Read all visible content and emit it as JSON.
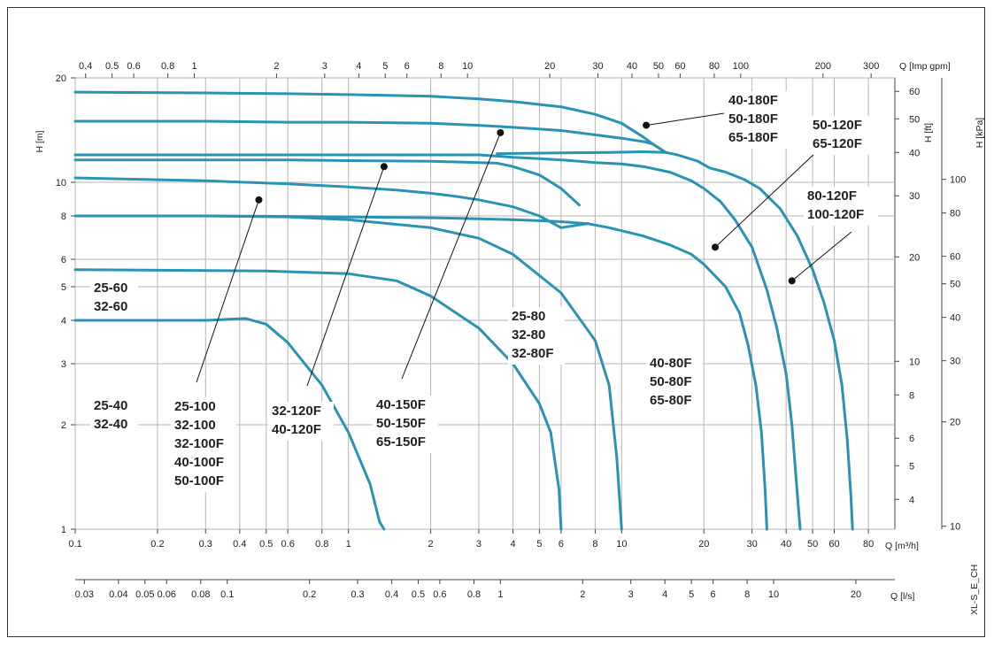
{
  "chart_data": {
    "type": "line",
    "title": "",
    "xlabel": "Q [m³/h]",
    "ylabel": "H [m]",
    "x_scale": "log",
    "y_scale": "log",
    "xlim": [
      0.1,
      100
    ],
    "ylim": [
      1,
      20
    ],
    "grid": true,
    "x_ticks": [
      "0.1",
      "0.2",
      "0.3",
      "0.4",
      "0.5",
      "0.6",
      "0.8",
      "1",
      "2",
      "3",
      "4",
      "5",
      "6",
      "8",
      "10",
      "20",
      "30",
      "40",
      "50",
      "60",
      "80"
    ],
    "y_ticks": [
      "1",
      "2",
      "3",
      "4",
      "5",
      "6",
      "8",
      "10",
      "20"
    ],
    "secondary_axes": {
      "top": {
        "label": "Q [Imp gpm]",
        "ticks": [
          "0.4",
          "0.5",
          "0.6",
          "0.8",
          "1",
          "2",
          "3",
          "4",
          "5",
          "6",
          "8",
          "10",
          "20",
          "30",
          "40",
          "50",
          "60",
          "80",
          "100",
          "200",
          "300"
        ]
      },
      "bottom2": {
        "label": "Q [l/s]",
        "ticks": [
          "0.03",
          "0.04",
          "0.05",
          "0.06",
          "0.08",
          "0.1",
          "0.2",
          "0.3",
          "0.4",
          "0.5",
          "0.6",
          "0.8",
          "1",
          "2",
          "3",
          "4",
          "5",
          "6",
          "8",
          "10",
          "20"
        ]
      },
      "right1": {
        "label": "H [ft]",
        "ticks": [
          "4",
          "5",
          "6",
          "8",
          "10",
          "20",
          "30",
          "40",
          "50",
          "60"
        ]
      },
      "right2": {
        "label": "H [kPa]",
        "ticks": [
          "10",
          "20",
          "30",
          "40",
          "50",
          "60",
          "80",
          "100"
        ]
      }
    },
    "side_label": "XL-S_E_CH",
    "series": [
      {
        "x": [
          0.1,
          0.3,
          0.42,
          0.5,
          0.6,
          0.8,
          1.0,
          1.2,
          1.3,
          1.35
        ],
        "y": [
          4.0,
          4.0,
          4.05,
          3.9,
          3.45,
          2.6,
          1.9,
          1.35,
          1.05,
          1.0
        ]
      },
      {
        "x": [
          0.1,
          0.5,
          1.0,
          1.5,
          2.0,
          3.0,
          4.0,
          5.0,
          5.5,
          5.9,
          6.0
        ],
        "y": [
          5.6,
          5.55,
          5.45,
          5.2,
          4.7,
          3.8,
          3.0,
          2.3,
          1.9,
          1.3,
          1.0
        ]
      },
      {
        "x": [
          0.1,
          0.3,
          0.6,
          1.0,
          2.0,
          3.0,
          4.0,
          6.0,
          8.0,
          9.0,
          9.6,
          10.0
        ],
        "y": [
          8.0,
          8.0,
          7.95,
          7.8,
          7.4,
          6.9,
          6.2,
          4.8,
          3.5,
          2.6,
          1.6,
          1.0
        ]
      },
      {
        "x": [
          0.1,
          0.3,
          0.6,
          1.0,
          1.5,
          2.0,
          2.5,
          3.0,
          4.0,
          5.0,
          6.0,
          7.5
        ],
        "y": [
          10.3,
          10.1,
          9.9,
          9.7,
          9.5,
          9.3,
          9.1,
          8.9,
          8.5,
          8.0,
          7.4,
          7.6
        ]
      },
      {
        "x": [
          0.1,
          0.3,
          0.5,
          1.0,
          2.0,
          3.0,
          4.0,
          5.0,
          6.0,
          7.5
        ],
        "y": [
          8.0,
          8.0,
          7.98,
          7.95,
          7.9,
          7.85,
          7.8,
          7.75,
          7.7,
          7.6
        ]
      },
      {
        "x": [
          7.5,
          9.0,
          12.0,
          15.0,
          18.0,
          20.0,
          24.0,
          27.0,
          29.0,
          31.0,
          32.5,
          33.5,
          34.0
        ],
        "y": [
          7.6,
          7.4,
          7.0,
          6.6,
          6.2,
          5.8,
          5.0,
          4.2,
          3.4,
          2.6,
          1.9,
          1.3,
          1.0
        ]
      },
      {
        "x": [
          0.1,
          0.3,
          0.6,
          1.0,
          2.0,
          3.0,
          3.5,
          4.0,
          5.0,
          6.0,
          7.0
        ],
        "y": [
          11.6,
          11.6,
          11.6,
          11.55,
          11.5,
          11.4,
          11.35,
          11.1,
          10.5,
          9.6,
          8.6
        ]
      },
      {
        "x": [
          0.1,
          0.3,
          0.5,
          1.0,
          2.0,
          3.0,
          3.5,
          4.0,
          5.0,
          6.0,
          7.0,
          8.0,
          10.0,
          12.0,
          15.0,
          18.0,
          20.0,
          23.0,
          26.0,
          30.0,
          34.0,
          37.0,
          40.0,
          42.0,
          43.5,
          45.0
        ],
        "y": [
          12.0,
          12.0,
          12.0,
          12.0,
          12.0,
          12.0,
          11.9,
          11.8,
          11.7,
          11.6,
          11.5,
          11.4,
          11.3,
          11.1,
          10.7,
          10.1,
          9.6,
          8.8,
          7.8,
          6.5,
          4.9,
          3.8,
          2.8,
          2.0,
          1.4,
          1.0
        ]
      },
      {
        "x": [
          0.1,
          0.3,
          0.6,
          1.0,
          2.0,
          3.0,
          4.0,
          6.0,
          8.0,
          10.0,
          12.0,
          13.0,
          14.5
        ],
        "y": [
          15.0,
          15.0,
          14.9,
          14.9,
          14.8,
          14.6,
          14.4,
          14.1,
          13.7,
          13.4,
          13.1,
          12.9,
          12.2
        ]
      },
      {
        "x": [
          0.1,
          0.3,
          0.6,
          1.0,
          2.0,
          3.0,
          4.0,
          6.0,
          8.0,
          10.0,
          12.0,
          13.0,
          14.5
        ],
        "y": [
          18.2,
          18.1,
          18.0,
          17.9,
          17.7,
          17.4,
          17.1,
          16.5,
          15.7,
          14.8,
          13.5,
          12.9,
          12.2
        ]
      },
      {
        "x": [
          3.5,
          6.0,
          9.0,
          12.0,
          14.5,
          16.0,
          19.0,
          21.0
        ],
        "y": [
          12.1,
          12.15,
          12.2,
          12.25,
          12.2,
          12.0,
          11.5,
          11.0
        ]
      },
      {
        "x": [
          21.0,
          24.0,
          28.0,
          32.0,
          38.0,
          44.0,
          50.0,
          55.0,
          60.0,
          64.0,
          67.0,
          69.0,
          70.0
        ],
        "y": [
          11.0,
          10.7,
          10.2,
          9.6,
          8.4,
          7.0,
          5.6,
          4.5,
          3.5,
          2.6,
          1.8,
          1.25,
          1.0
        ]
      }
    ],
    "annotations": [
      {
        "lines": [
          "25-60",
          "32-60"
        ]
      },
      {
        "lines": [
          "25-40",
          "32-40"
        ]
      },
      {
        "lines": [
          "25-100",
          "32-100",
          "32-100F",
          "40-100F",
          "50-100F"
        ],
        "marker": {
          "x": 0.47,
          "y": 8.9
        }
      },
      {
        "lines": [
          "32-120F",
          "40-120F"
        ],
        "marker": {
          "x": 1.35,
          "y": 11.1
        }
      },
      {
        "lines": [
          "40-150F",
          "50-150F",
          "65-150F"
        ],
        "marker": {
          "x": 3.6,
          "y": 13.9
        }
      },
      {
        "lines": [
          "25-80",
          "32-80",
          "32-80F"
        ]
      },
      {
        "lines": [
          "40-80F",
          "50-80F",
          "65-80F"
        ]
      },
      {
        "lines": [
          "40-180F",
          "50-180F",
          "65-180F"
        ],
        "marker": {
          "x": 12.3,
          "y": 14.6
        }
      },
      {
        "lines": [
          "50-120F",
          "65-120F"
        ],
        "marker": {
          "x": 22.0,
          "y": 6.5
        }
      },
      {
        "lines": [
          "80-120F",
          "100-120F"
        ],
        "marker": {
          "x": 42.0,
          "y": 5.2
        }
      }
    ]
  }
}
